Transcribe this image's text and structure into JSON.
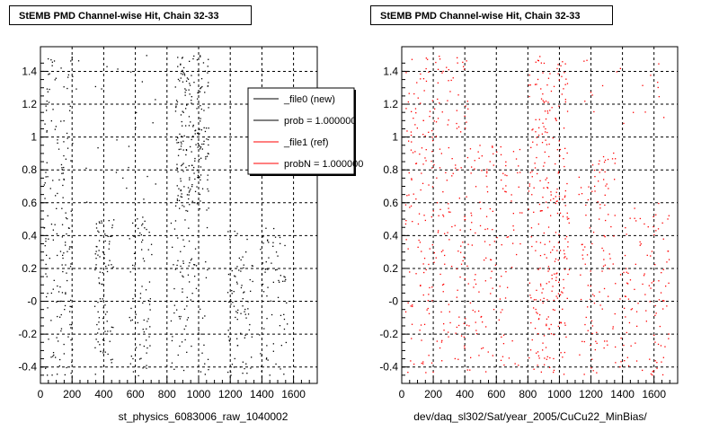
{
  "chart_data": [
    {
      "type": "scatter",
      "title": "StEMB PMD Channel-wise Hit, Chain 32-33",
      "xlabel": "st_physics_6083006_raw_1040002",
      "ylabel": "",
      "xlim": [
        0,
        1750
      ],
      "ylim": [
        -0.5,
        1.55
      ],
      "x_ticks": [
        0,
        200,
        400,
        600,
        800,
        1000,
        1200,
        1400,
        1600
      ],
      "x_tick_labels": [
        "0",
        "200",
        "400",
        "600",
        "800",
        "1000",
        "1200",
        "1400",
        "1600"
      ],
      "y_ticks": [
        -0.4,
        -0.2,
        0,
        0.2,
        0.4,
        0.6,
        0.8,
        1,
        1.2,
        1.4
      ],
      "y_tick_labels": [
        "-0.4",
        "-0.2",
        "-0",
        "0.2",
        "0.4",
        "0.6",
        "0.8",
        "1",
        "1.2",
        "1.4"
      ],
      "grid": true,
      "color": "#000000",
      "point_clusters": [
        {
          "x": [
            20,
            200
          ],
          "y": [
            -0.45,
            1.5
          ],
          "n": 170
        },
        {
          "x": [
            340,
            460
          ],
          "y": [
            -0.45,
            0.5
          ],
          "n": 90
        },
        {
          "x": [
            560,
            700
          ],
          "y": [
            -0.45,
            0.55
          ],
          "n": 70
        },
        {
          "x": [
            850,
            1060
          ],
          "y": [
            0.55,
            1.5
          ],
          "n": 210
        },
        {
          "x": [
            820,
            1060
          ],
          "y": [
            -0.45,
            0.55
          ],
          "n": 80
        },
        {
          "x": [
            1180,
            1340
          ],
          "y": [
            -0.45,
            0.45
          ],
          "n": 80
        },
        {
          "x": [
            1380,
            1560
          ],
          "y": [
            -0.45,
            0.45
          ],
          "n": 70
        },
        {
          "x": [
            220,
            800
          ],
          "y": [
            0.6,
            1.5
          ],
          "n": 25
        }
      ],
      "legend": {
        "placement": "top-right",
        "entries": [
          {
            "label": "_file0 (new)",
            "color": "#000000"
          },
          {
            "label": "prob = 1.000000",
            "color": "#000000"
          },
          {
            "label": "_file1 (ref)",
            "color": "#ff0000"
          },
          {
            "label": "probN = 1.000000",
            "color": "#ff0000"
          }
        ]
      }
    },
    {
      "type": "scatter",
      "title": "StEMB PMD Channel-wise Hit, Chain 32-33",
      "xlabel": "dev/daq_sl302/Sat/year_2005/CuCu22_MinBias/",
      "ylabel": "",
      "xlim": [
        0,
        1750
      ],
      "ylim": [
        -0.5,
        1.55
      ],
      "x_ticks": [
        0,
        200,
        400,
        600,
        800,
        1000,
        1200,
        1400,
        1600
      ],
      "x_tick_labels": [
        "0",
        "200",
        "400",
        "600",
        "800",
        "1000",
        "1200",
        "1400",
        "1600"
      ],
      "y_ticks": [
        -0.4,
        -0.2,
        0,
        0.2,
        0.4,
        0.6,
        0.8,
        1,
        1.2,
        1.4
      ],
      "y_tick_labels": [
        "-0.4",
        "-0.2",
        "-0",
        "0.2",
        "0.4",
        "0.6",
        "0.8",
        "1",
        "1.2",
        "1.4"
      ],
      "grid": true,
      "color": "#ff0000",
      "point_clusters": [
        {
          "x": [
            20,
            420
          ],
          "y": [
            -0.45,
            1.5
          ],
          "n": 260
        },
        {
          "x": [
            420,
            760
          ],
          "y": [
            -0.45,
            1.0
          ],
          "n": 130
        },
        {
          "x": [
            800,
            1060
          ],
          "y": [
            -0.45,
            1.5
          ],
          "n": 280
        },
        {
          "x": [
            1120,
            1360
          ],
          "y": [
            -0.45,
            0.9
          ],
          "n": 110
        },
        {
          "x": [
            1380,
            1700
          ],
          "y": [
            -0.45,
            0.6
          ],
          "n": 110
        },
        {
          "x": [
            1100,
            1700
          ],
          "y": [
            0.9,
            1.5
          ],
          "n": 20
        }
      ]
    }
  ]
}
